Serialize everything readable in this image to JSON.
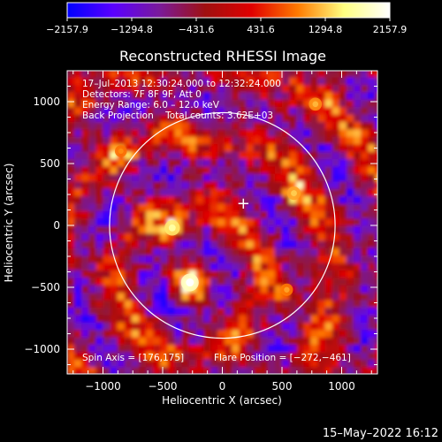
{
  "chart_data": {
    "type": "heatmap",
    "title": "Reconstructed RHESSI Image",
    "xlabel": "Heliocentric X (arcsec)",
    "ylabel": "Heliocentric Y (arcsec)",
    "xlim": [
      -1300,
      1300
    ],
    "ylim": [
      -1200,
      1250
    ],
    "xticks": [
      -1000,
      -500,
      0,
      500,
      1000
    ],
    "yticks": [
      1000,
      500,
      0,
      -500,
      -1000
    ],
    "xtick_labels": [
      "−1000",
      "−500",
      "0",
      "500",
      "1000"
    ],
    "ytick_labels": [
      "1000",
      "500",
      "0",
      "−500",
      "−1000"
    ],
    "colorbar": {
      "min": -2157.9,
      "max": 2157.9,
      "tick_labels": [
        "−2157.9",
        "−1294.8",
        "−431.6",
        "431.6",
        "1294.8",
        "2157.9"
      ],
      "colormap": [
        "#0000ff",
        "#5a00ff",
        "#7a1a9a",
        "#a01010",
        "#e00000",
        "#ff7a00",
        "#ffff80",
        "#ffffff"
      ]
    },
    "annotations": [
      "17–Jul–2013 12:30:24.000 to 12:32:24.000",
      "Detectors: 7F 8F 9F, Att 0",
      "Energy Range: 6.0 – 12.0 keV",
      "Back Projection    Total counts: 3.62E+03",
      "Spin Axis = [176,175]",
      "Flare Position = [−272,−461]"
    ],
    "solar_limb": {
      "center": [
        0,
        0
      ],
      "radius_arcsec": 945
    },
    "marker": {
      "symbol": "+",
      "x": 176,
      "y": 175
    },
    "bright_sources": [
      {
        "x": -272,
        "y": -461,
        "level": 2157.9
      },
      {
        "x": -420,
        "y": -20,
        "level": 1700
      },
      {
        "x": 600,
        "y": 260,
        "level": 1300
      },
      {
        "x": 540,
        "y": -520,
        "level": 1100
      },
      {
        "x": 780,
        "y": 980,
        "level": 1200
      },
      {
        "x": -850,
        "y": 600,
        "level": 1000
      }
    ],
    "grid": false,
    "background": "#000000"
  },
  "footer": {
    "timestamp": "15–May–2022 16:12"
  }
}
